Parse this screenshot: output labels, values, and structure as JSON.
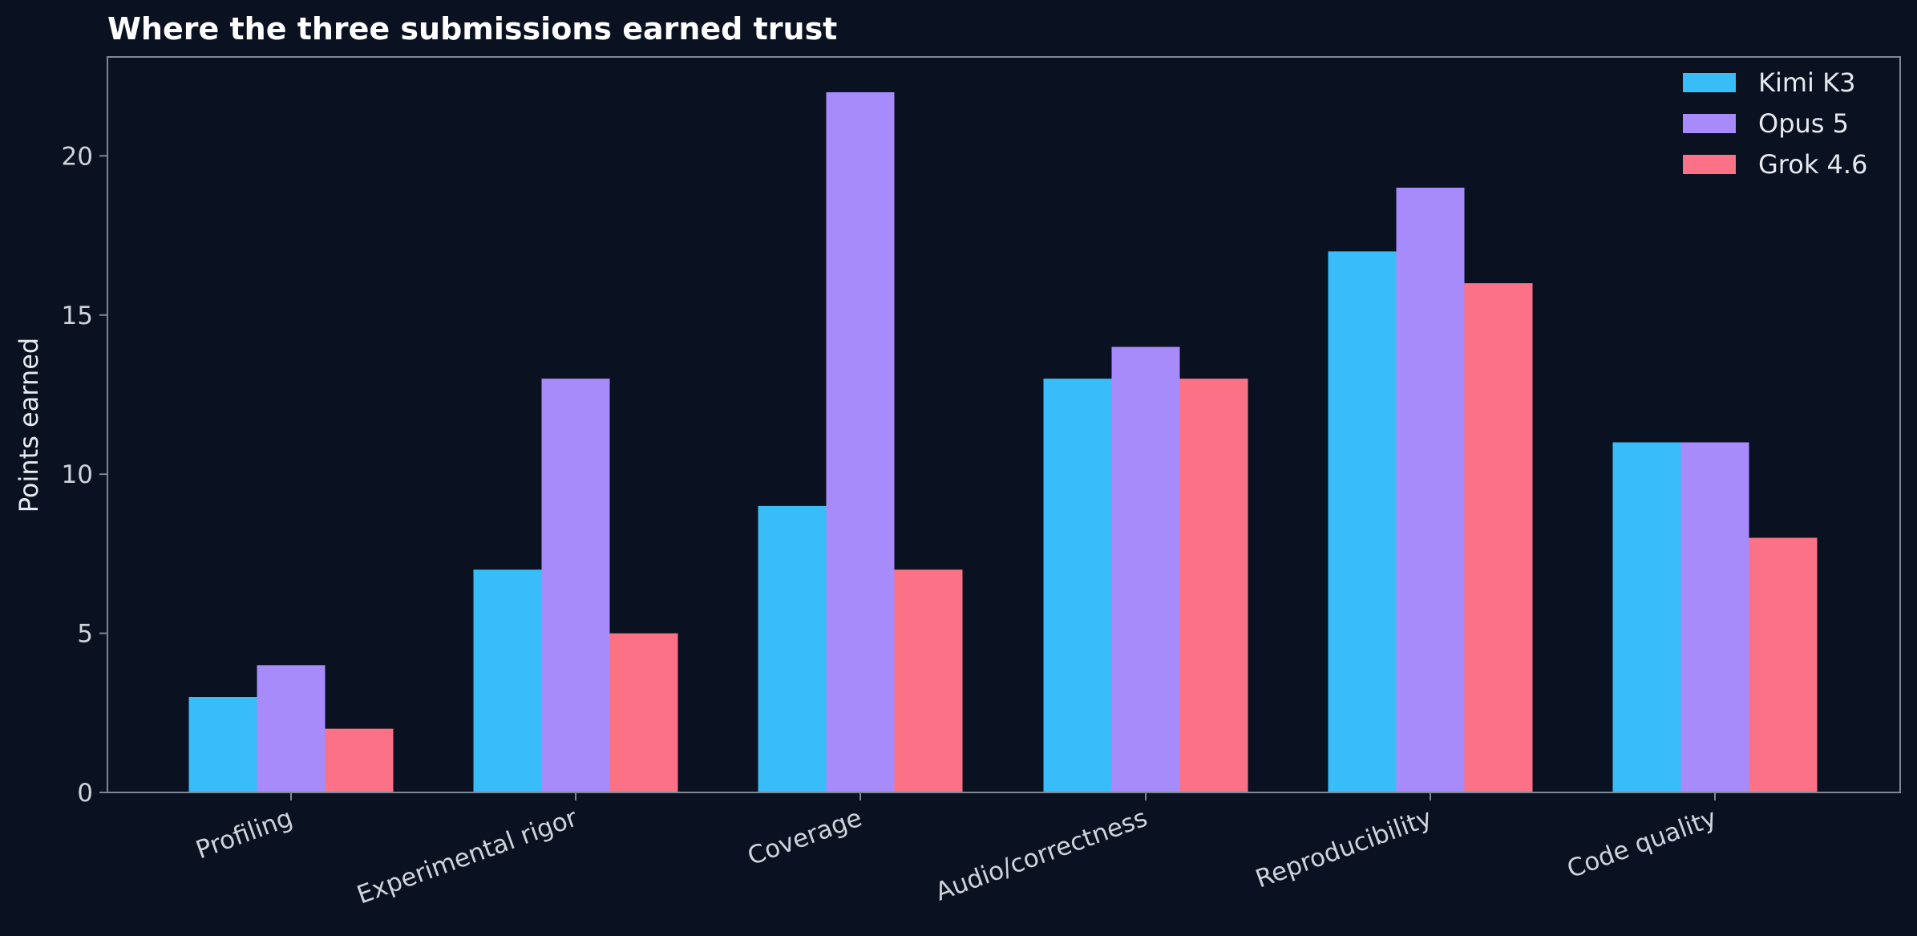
{
  "colors": {
    "background": "#0a1120",
    "axes_frame": "#7c8797",
    "text": "#e6e9ef",
    "tick_text": "#cfd4dc"
  },
  "chart_data": {
    "type": "bar",
    "title": "Where the three submissions earned trust",
    "xlabel": "",
    "ylabel": "Points earned",
    "categories": [
      "Profiling",
      "Experimental rigor",
      "Coverage",
      "Audio/correctness",
      "Reproducibility",
      "Code quality"
    ],
    "series": [
      {
        "name": "Kimi K3",
        "color": "#38bdf8",
        "values": [
          3,
          7,
          9,
          13,
          17,
          11
        ]
      },
      {
        "name": "Opus 5",
        "color": "#a78bfa",
        "values": [
          4,
          13,
          22,
          14,
          19,
          11
        ]
      },
      {
        "name": "Grok 4.6",
        "color": "#fb7185",
        "values": [
          2,
          5,
          7,
          13,
          16,
          8
        ]
      }
    ],
    "ylim": [
      0,
      23
    ],
    "yticks": [
      0,
      5,
      10,
      15,
      20
    ],
    "grid": false,
    "legend_position": "top-right",
    "xtick_rotation": "20 degrees"
  }
}
